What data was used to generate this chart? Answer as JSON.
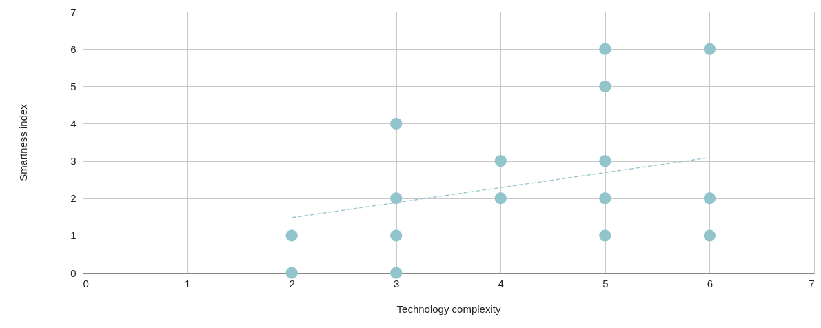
{
  "chart_data": {
    "type": "scatter",
    "xlabel": "Technology complexity",
    "ylabel": "Smartness index",
    "xlim": [
      0,
      7
    ],
    "ylim": [
      0,
      7
    ],
    "xticks": [
      0,
      1,
      2,
      3,
      4,
      5,
      6,
      7
    ],
    "yticks": [
      0,
      1,
      2,
      3,
      4,
      5,
      6,
      7
    ],
    "grid": true,
    "marker": "circle",
    "series": [
      {
        "color": "#92c5cb",
        "x": [
          2,
          2,
          3,
          3,
          3,
          3,
          4,
          4,
          5,
          5,
          5,
          5,
          5,
          6,
          6,
          6
        ],
        "values": [
          0,
          1,
          0,
          1,
          2,
          4,
          2,
          3,
          1,
          2,
          3,
          5,
          6,
          1,
          2,
          6
        ]
      },
      {
        "type": "line",
        "color": "#92c5cb",
        "line_style": "dashed",
        "marker": "none",
        "x": [
          2,
          6
        ],
        "values": [
          1.48,
          3.09
        ]
      }
    ]
  }
}
